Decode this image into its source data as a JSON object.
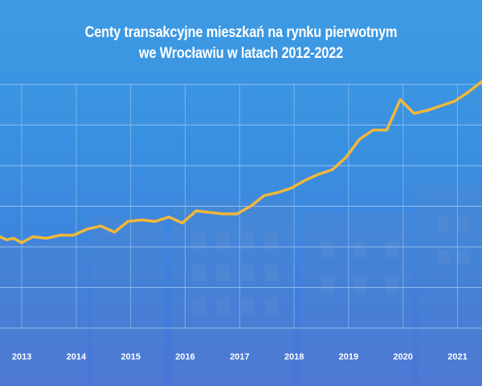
{
  "title_line1": "Centy transakcyjne mieszkań na rynku pierwotnym",
  "title_line2": "we Wrocławiu w latach 2012-2022",
  "colors": {
    "line": "#f2b73a",
    "grid": "#a9d0f5",
    "text": "#ffffff"
  },
  "chart_data": {
    "type": "line",
    "title": "Centy transakcyjne mieszkań na rynku pierwotnym we Wrocławiu w latach 2012-2022",
    "xlabel": "",
    "ylabel": "",
    "x_tick_labels": [
      "2013",
      "2014",
      "2015",
      "2016",
      "2017",
      "2018",
      "2019",
      "2020",
      "2021"
    ],
    "xlim": [
      2012.6,
      2021.45
    ],
    "ylim": [
      0,
      8
    ],
    "grid": true,
    "legend": "none",
    "series": [
      {
        "x": [
          2012.6,
          2012.72,
          2012.85,
          2013.0,
          2013.2,
          2013.45,
          2013.7,
          2013.95,
          2014.2,
          2014.45,
          2014.7,
          2014.95,
          2015.2,
          2015.45,
          2015.7,
          2015.95,
          2016.2,
          2016.45,
          2016.7,
          2016.95,
          2017.2,
          2017.45,
          2017.7,
          2017.95,
          2018.2,
          2018.45,
          2018.7,
          2018.95,
          2019.2,
          2019.45,
          2019.7,
          2019.95,
          2020.2,
          2020.45,
          2020.7,
          2020.95,
          2021.2,
          2021.45
        ],
        "values": [
          3.0,
          2.9,
          2.95,
          2.8,
          3.0,
          2.95,
          3.05,
          3.05,
          3.25,
          3.35,
          3.15,
          3.5,
          3.55,
          3.5,
          3.65,
          3.45,
          3.85,
          3.8,
          3.75,
          3.75,
          4.0,
          4.35,
          4.45,
          4.6,
          4.85,
          5.05,
          5.2,
          5.6,
          6.2,
          6.5,
          6.5,
          7.5,
          7.05,
          7.15,
          7.3,
          7.45,
          7.75,
          8.1
        ]
      }
    ]
  }
}
